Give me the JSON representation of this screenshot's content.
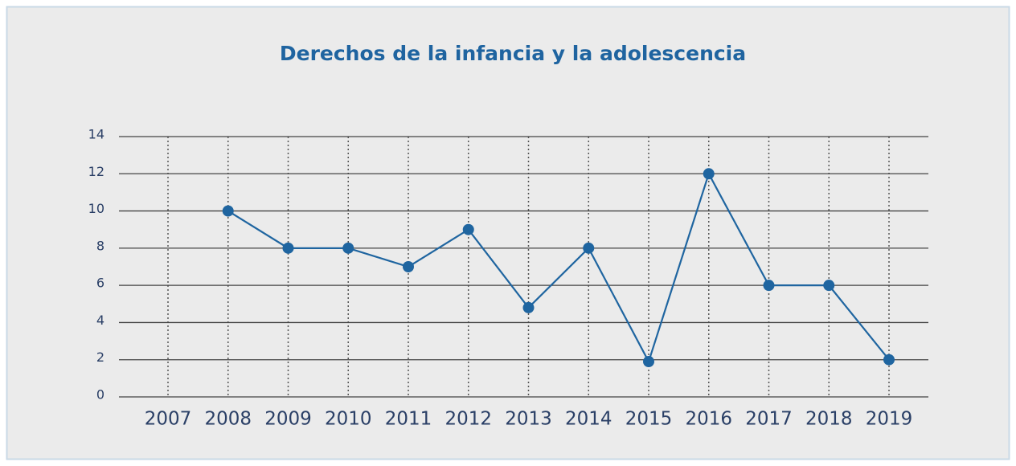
{
  "chart_data": {
    "type": "line",
    "title": "Derechos de la infancia y la adolescencia",
    "categories": [
      "2007",
      "2008",
      "2009",
      "2010",
      "2011",
      "2012",
      "2013",
      "2014",
      "2015",
      "2016",
      "2017",
      "2018",
      "2019"
    ],
    "series": [
      {
        "name": "Derechos de la infancia y la adolescencia",
        "color": "#1f65a0",
        "values": [
          null,
          10,
          8,
          8,
          7,
          9,
          4.8,
          8,
          1.9,
          12,
          6,
          6,
          2
        ]
      }
    ],
    "ylim": [
      0,
      14
    ],
    "yticks": [
      0,
      2,
      4,
      6,
      8,
      10,
      12,
      14
    ],
    "grid": true
  }
}
